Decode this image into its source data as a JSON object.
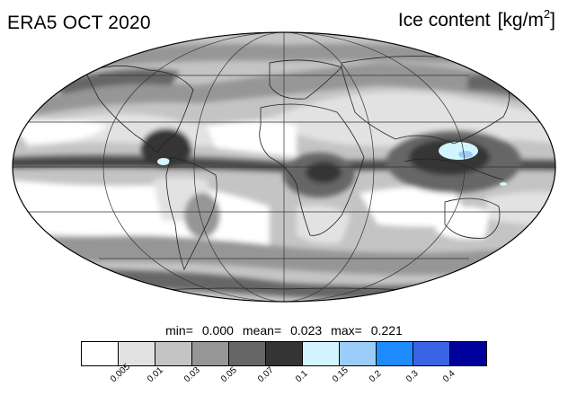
{
  "header": {
    "dataset_label": "ERA5 OCT 2020",
    "variable_label": "Ice content",
    "units_label": "[kg/m",
    "units_exponent": "2",
    "units_close": "]"
  },
  "stats": {
    "min_label": "min=",
    "min_value": "0.000",
    "mean_label": "mean=",
    "mean_value": "0.023",
    "max_label": "max=",
    "max_value": "0.221"
  },
  "legend": {
    "colors": [
      "#ffffff",
      "#e2e2e2",
      "#c4c4c4",
      "#969696",
      "#666666",
      "#343434",
      "#d2f5ff",
      "#9ccdfa",
      "#1e8cff",
      "#3a64e6",
      "#00009c"
    ],
    "ticks": [
      "0.005",
      "0.01",
      "0.03",
      "0.05",
      "0.07",
      "0.1",
      "0.15",
      "0.2",
      "0.3",
      "0.4"
    ]
  },
  "map": {
    "projection": "Mollweide",
    "ocean_background": "#c4c4c4"
  }
}
